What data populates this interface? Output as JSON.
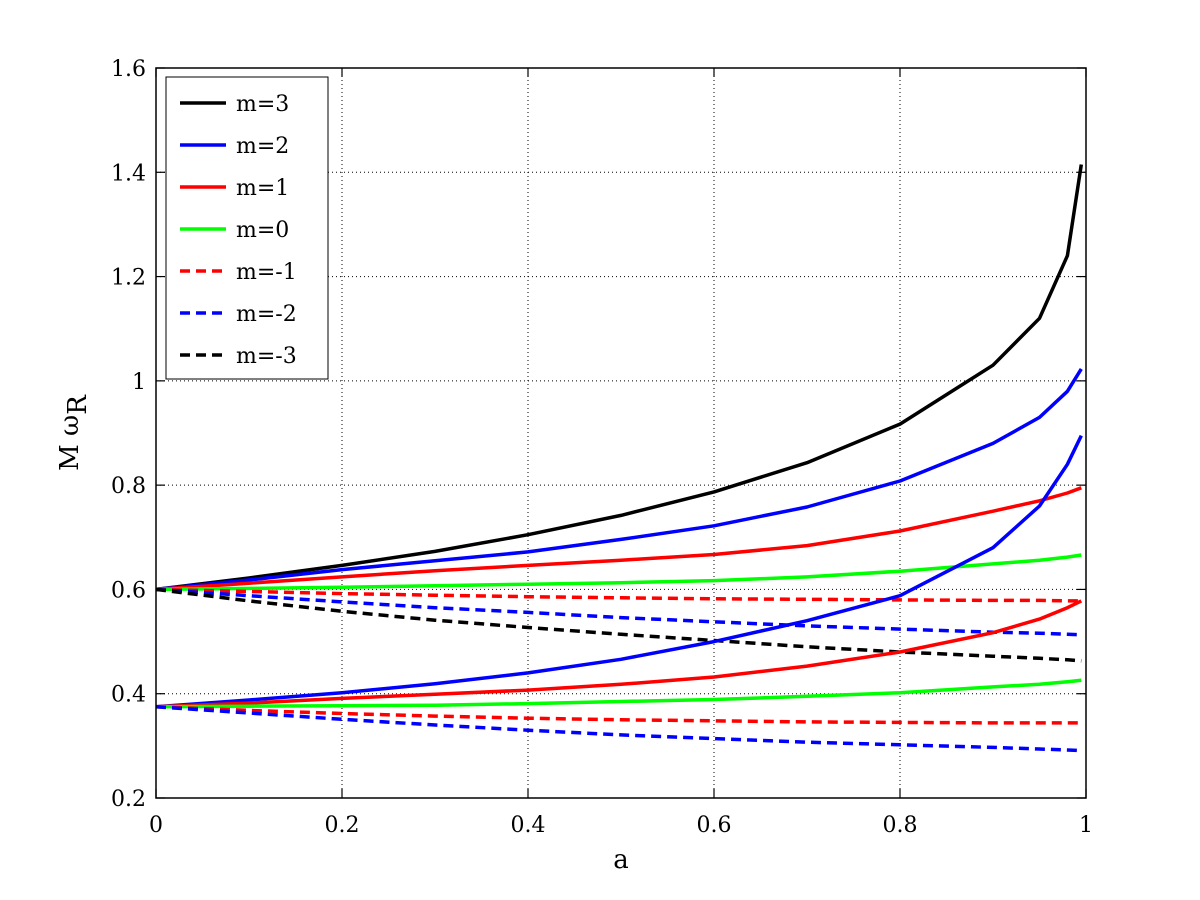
{
  "chart_data": {
    "type": "line",
    "xlabel": "a",
    "ylabel_main": "M ω",
    "ylabel_sub": "R",
    "xlim": [
      0,
      1
    ],
    "ylim": [
      0.2,
      1.6
    ],
    "xticks": [
      0,
      0.2,
      0.4,
      0.6,
      0.8,
      1
    ],
    "xtick_labels": [
      "0",
      "0.2",
      "0.4",
      "0.6",
      "0.8",
      "1"
    ],
    "yticks": [
      0.2,
      0.4,
      0.6,
      0.8,
      1.0,
      1.2,
      1.4,
      1.6
    ],
    "ytick_labels": [
      "0.2",
      "0.4",
      "0.6",
      "0.8",
      "1",
      "1.2",
      "1.4",
      "1.6"
    ],
    "grid": true,
    "legend_position": "top-left",
    "legend": [
      {
        "label": "m=3",
        "color": "#000000",
        "style": "solid"
      },
      {
        "label": "m=2",
        "color": "#0000ff",
        "style": "solid"
      },
      {
        "label": "m=1",
        "color": "#ff0000",
        "style": "solid"
      },
      {
        "label": "m=0",
        "color": "#00ff00",
        "style": "solid"
      },
      {
        "label": "m=-1",
        "color": "#ff0000",
        "style": "dashed"
      },
      {
        "label": "m=-2",
        "color": "#0000ff",
        "style": "dashed"
      },
      {
        "label": "m=-3",
        "color": "#000000",
        "style": "dashed"
      }
    ],
    "x": [
      0,
      0.1,
      0.2,
      0.3,
      0.4,
      0.5,
      0.6,
      0.7,
      0.8,
      0.9,
      0.95,
      0.98,
      0.995
    ],
    "series": [
      {
        "name": "m=3",
        "color": "#000000",
        "style": "solid",
        "values": [
          0.6,
          0.622,
          0.646,
          0.673,
          0.705,
          0.742,
          0.787,
          0.843,
          0.917,
          1.03,
          1.12,
          1.24,
          1.415
        ]
      },
      {
        "name": "m=2",
        "color": "#0000ff",
        "style": "solid",
        "values": [
          0.6,
          0.618,
          0.638,
          0.655,
          0.672,
          0.696,
          0.722,
          0.758,
          0.808,
          0.88,
          0.93,
          0.98,
          1.023
        ]
      },
      {
        "name": "m=1",
        "color": "#ff0000",
        "style": "solid",
        "values": [
          0.6,
          0.612,
          0.624,
          0.636,
          0.646,
          0.656,
          0.667,
          0.684,
          0.712,
          0.75,
          0.77,
          0.785,
          0.795
        ]
      },
      {
        "name": "m=0",
        "color": "#00ff00",
        "style": "solid",
        "values": [
          0.6,
          0.602,
          0.604,
          0.607,
          0.61,
          0.613,
          0.617,
          0.624,
          0.635,
          0.649,
          0.656,
          0.662,
          0.666
        ]
      },
      {
        "name": "m=-1",
        "color": "#ff0000",
        "style": "dashed",
        "values": [
          0.6,
          0.596,
          0.592,
          0.589,
          0.586,
          0.584,
          0.582,
          0.581,
          0.58,
          0.579,
          0.579,
          0.578,
          0.578
        ]
      },
      {
        "name": "m=-2",
        "color": "#0000ff",
        "style": "dashed",
        "values": [
          0.6,
          0.588,
          0.576,
          0.565,
          0.556,
          0.546,
          0.538,
          0.53,
          0.524,
          0.518,
          0.516,
          0.514,
          0.513
        ]
      },
      {
        "name": "m=-3",
        "color": "#000000",
        "style": "dashed",
        "values": [
          0.6,
          0.578,
          0.558,
          0.541,
          0.527,
          0.514,
          0.502,
          0.49,
          0.48,
          0.472,
          0.468,
          0.465,
          0.463
        ]
      },
      {
        "name": "m=2",
        "color": "#0000ff",
        "style": "solid",
        "values": [
          0.375,
          0.388,
          0.402,
          0.419,
          0.44,
          0.466,
          0.5,
          0.54,
          0.588,
          0.68,
          0.76,
          0.84,
          0.895
        ]
      },
      {
        "name": "m=1",
        "color": "#ff0000",
        "style": "solid",
        "values": [
          0.375,
          0.382,
          0.391,
          0.399,
          0.407,
          0.418,
          0.432,
          0.453,
          0.48,
          0.517,
          0.543,
          0.565,
          0.578
        ]
      },
      {
        "name": "m=0",
        "color": "#00ff00",
        "style": "solid",
        "values": [
          0.375,
          0.376,
          0.377,
          0.378,
          0.381,
          0.385,
          0.389,
          0.395,
          0.402,
          0.413,
          0.418,
          0.423,
          0.426
        ]
      },
      {
        "name": "m=-1",
        "color": "#ff0000",
        "style": "dashed",
        "values": [
          0.375,
          0.368,
          0.362,
          0.357,
          0.353,
          0.35,
          0.348,
          0.346,
          0.345,
          0.344,
          0.344,
          0.344,
          0.344
        ]
      },
      {
        "name": "m=-2",
        "color": "#0000ff",
        "style": "dashed",
        "values": [
          0.375,
          0.363,
          0.351,
          0.34,
          0.33,
          0.321,
          0.314,
          0.307,
          0.302,
          0.297,
          0.294,
          0.292,
          0.291
        ]
      }
    ]
  }
}
